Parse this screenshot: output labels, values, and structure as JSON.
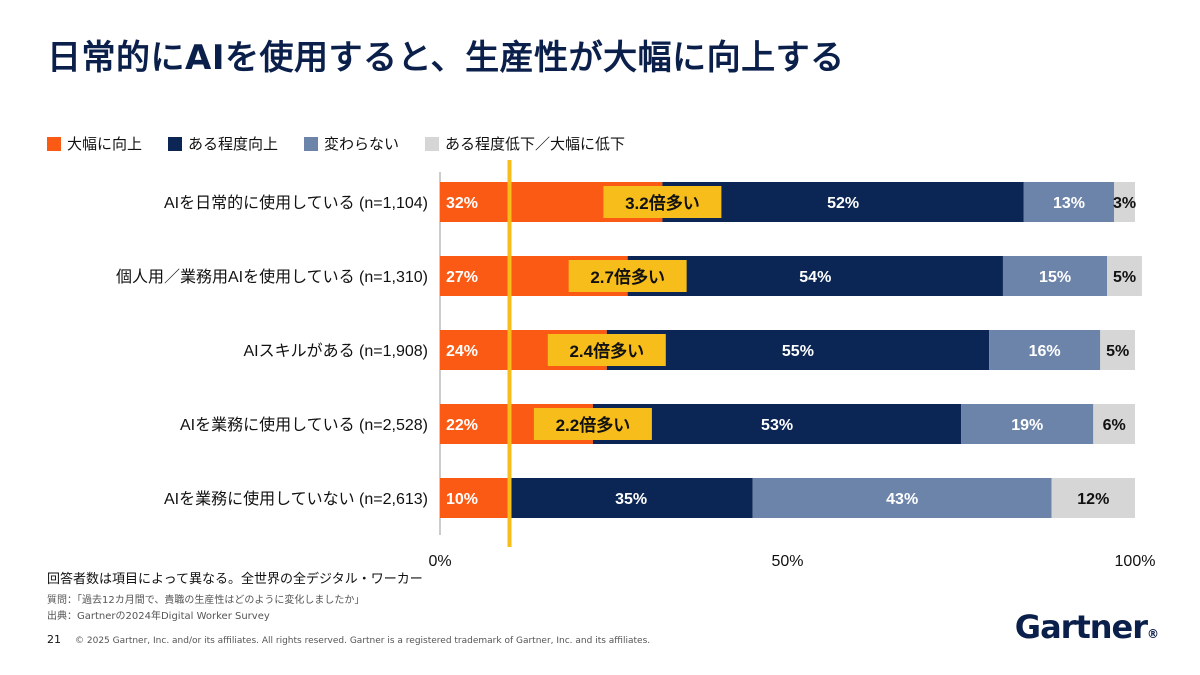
{
  "title": "日常的にAIを使用すると、生産性が大幅に向上する",
  "legend": [
    {
      "label": "大幅に向上",
      "color": "#fa5a14"
    },
    {
      "label": "ある程度向上",
      "color": "#0b2554"
    },
    {
      "label": "変わらない",
      "color": "#6d84aa"
    },
    {
      "label": "ある程度低下／大幅に低下",
      "color": "#d6d6d6"
    }
  ],
  "chart_data": {
    "type": "bar",
    "orientation": "horizontal",
    "stacked": true,
    "categories": [
      "AIを日常的に使用している (n=1,104)",
      "個人用／業務用AIを使用している (n=1,310)",
      "AIスキルがある (n=1,908)",
      "AIを業務に使用している (n=2,528)",
      "AIを業務に使用していない (n=2,613)"
    ],
    "series": [
      {
        "name": "大幅に向上",
        "color": "#fa5a14",
        "values": [
          32,
          27,
          24,
          22,
          10
        ]
      },
      {
        "name": "ある程度向上",
        "color": "#0b2554",
        "values": [
          52,
          54,
          55,
          53,
          35
        ]
      },
      {
        "name": "変わらない",
        "color": "#6d84aa",
        "values": [
          13,
          15,
          16,
          19,
          43
        ]
      },
      {
        "name": "ある程度低下／大幅に低下",
        "color": "#d6d6d6",
        "values": [
          3,
          5,
          5,
          6,
          12
        ]
      }
    ],
    "multiplier_labels": [
      "3.2倍多い",
      "2.7倍多い",
      "2.4倍多い",
      "2.2倍多い",
      ""
    ],
    "reference_line_value": 10,
    "xlim": [
      0,
      100
    ],
    "xticks": [
      "0%",
      "50%",
      "100%"
    ]
  },
  "notes": {
    "main": "回答者数は項目によって異なる。全世界の全デジタル・ワーカー",
    "question": "質問：「過去12カ月間で、貴職の生産性はどのように変化しましたか」",
    "source": "出典：Gartnerの2024年Digital Worker Survey"
  },
  "footer": {
    "page": "21",
    "copyright": "© 2025 Gartner, Inc. and/or its affiliates. All rights reserved. Gartner is a registered trademark of Gartner, Inc. and its affiliates."
  },
  "logo": {
    "text": "Gartner",
    "mark": "®"
  }
}
